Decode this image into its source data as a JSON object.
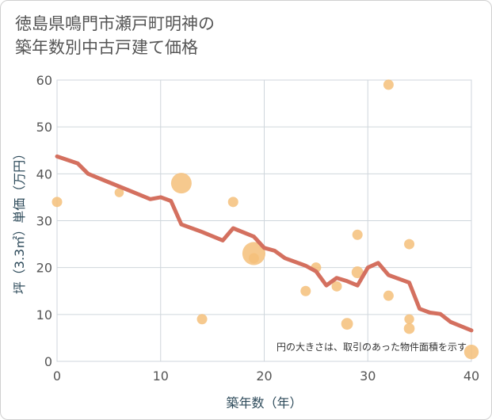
{
  "title_lines": [
    "徳島県鳴門市瀬戸町明神の",
    "築年数別中古戸建て価格"
  ],
  "chart_data": {
    "type": "scatter",
    "title": "徳島県鳴門市瀬戸町明神の築年数別中古戸建て価格",
    "xlabel": "築年数（年）",
    "ylabel": "坪（3.3㎡）単価（万円）",
    "xlim": [
      0,
      40
    ],
    "ylim": [
      0,
      60
    ],
    "xticks": [
      0,
      10,
      20,
      30,
      40
    ],
    "yticks": [
      0,
      10,
      20,
      30,
      40,
      50,
      60
    ],
    "grid": true,
    "note": "円の大きさは、取引のあった物件面積を示す",
    "bubble_color": "#f5c07a",
    "line_color": "#d4705f",
    "scatter": [
      {
        "x": 0,
        "y": 34,
        "size": 1
      },
      {
        "x": 6,
        "y": 36,
        "size": 0.8
      },
      {
        "x": 12,
        "y": 38,
        "size": 4
      },
      {
        "x": 14,
        "y": 9,
        "size": 1
      },
      {
        "x": 17,
        "y": 34,
        "size": 1
      },
      {
        "x": 19,
        "y": 23,
        "size": 5
      },
      {
        "x": 19,
        "y": 22,
        "size": 1
      },
      {
        "x": 24,
        "y": 15,
        "size": 1
      },
      {
        "x": 25,
        "y": 20,
        "size": 1
      },
      {
        "x": 27,
        "y": 16,
        "size": 1
      },
      {
        "x": 28,
        "y": 8,
        "size": 1.3
      },
      {
        "x": 29,
        "y": 27,
        "size": 1
      },
      {
        "x": 29,
        "y": 19,
        "size": 1.3
      },
      {
        "x": 32,
        "y": 59,
        "size": 1
      },
      {
        "x": 32,
        "y": 14,
        "size": 1
      },
      {
        "x": 34,
        "y": 25,
        "size": 1
      },
      {
        "x": 34,
        "y": 9,
        "size": 0.9
      },
      {
        "x": 34,
        "y": 7,
        "size": 1.1
      },
      {
        "x": 40,
        "y": 2,
        "size": 2
      }
    ],
    "trend": [
      {
        "x": 0,
        "y": 43.7
      },
      {
        "x": 2,
        "y": 42.2
      },
      {
        "x": 3,
        "y": 40
      },
      {
        "x": 5,
        "y": 38.2
      },
      {
        "x": 7,
        "y": 36.4
      },
      {
        "x": 9,
        "y": 34.6
      },
      {
        "x": 10,
        "y": 35
      },
      {
        "x": 11,
        "y": 34.2
      },
      {
        "x": 12,
        "y": 29.2
      },
      {
        "x": 14,
        "y": 27.6
      },
      {
        "x": 16,
        "y": 25.8
      },
      {
        "x": 17,
        "y": 28.4
      },
      {
        "x": 19,
        "y": 26.6
      },
      {
        "x": 20,
        "y": 24.2
      },
      {
        "x": 21,
        "y": 23.6
      },
      {
        "x": 22,
        "y": 22
      },
      {
        "x": 24,
        "y": 20.4
      },
      {
        "x": 25,
        "y": 19.2
      },
      {
        "x": 26,
        "y": 16.2
      },
      {
        "x": 27,
        "y": 17.8
      },
      {
        "x": 28,
        "y": 17.1
      },
      {
        "x": 29,
        "y": 16.2
      },
      {
        "x": 30,
        "y": 20
      },
      {
        "x": 31,
        "y": 21
      },
      {
        "x": 32,
        "y": 18.4
      },
      {
        "x": 34,
        "y": 16.8
      },
      {
        "x": 35,
        "y": 11.2
      },
      {
        "x": 36,
        "y": 10.4
      },
      {
        "x": 37,
        "y": 10.1
      },
      {
        "x": 38,
        "y": 8.4
      },
      {
        "x": 40,
        "y": 6.6
      }
    ]
  }
}
